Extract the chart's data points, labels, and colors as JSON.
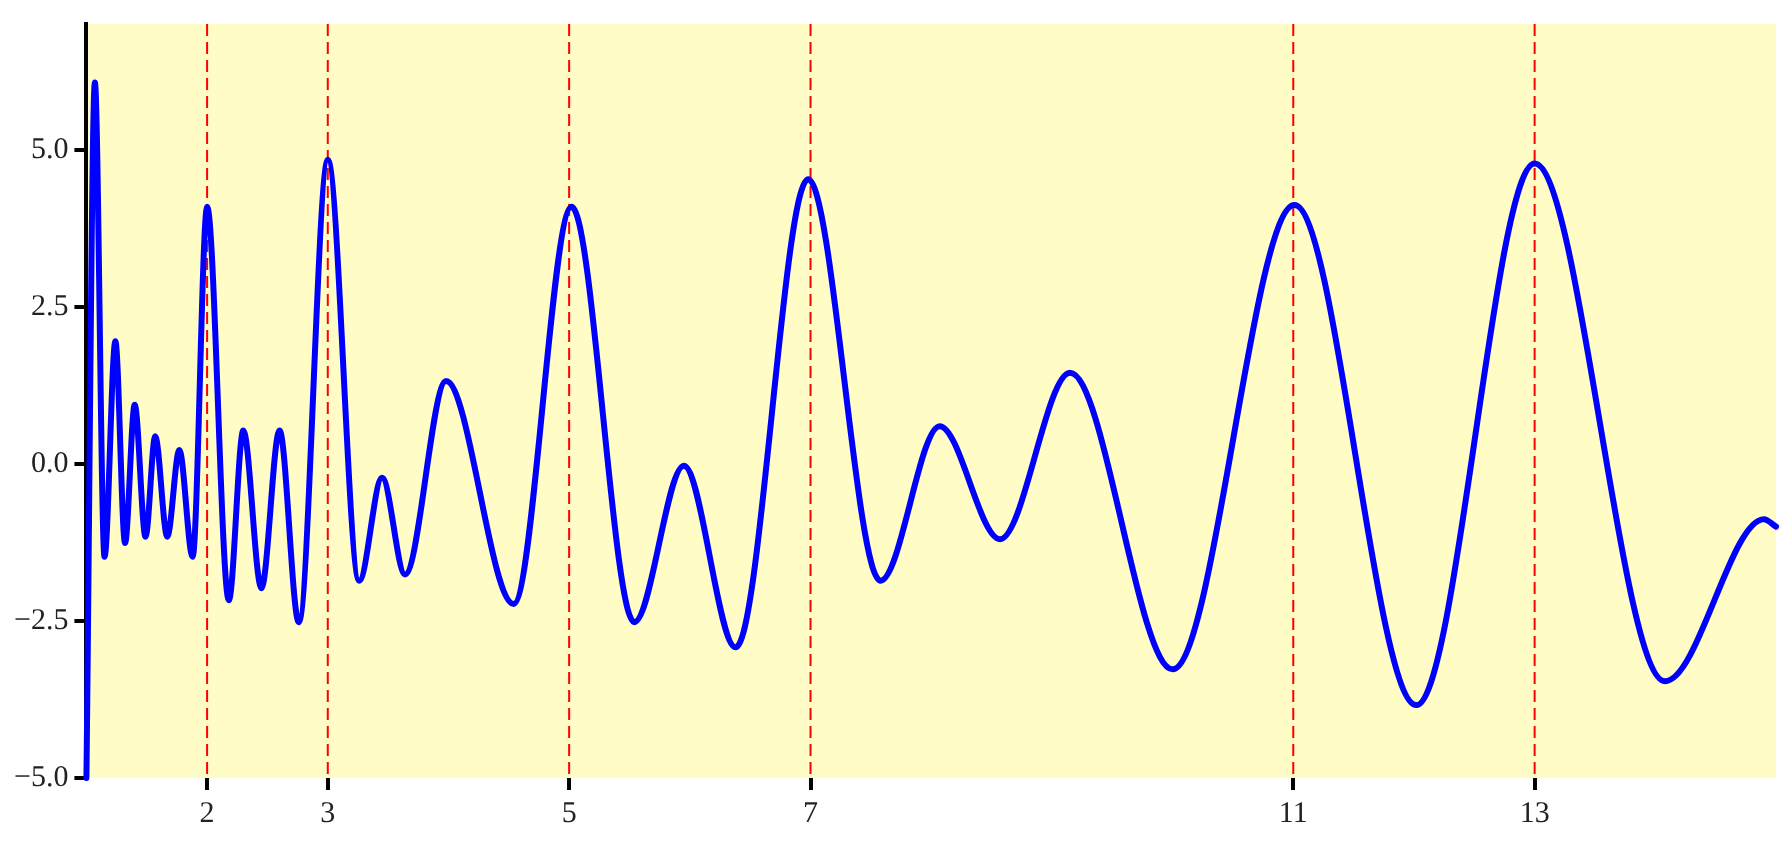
{
  "chart_data": {
    "type": "line",
    "xlim": [
      1,
      15
    ],
    "ylim": [
      -5,
      7
    ],
    "xticks": [
      2,
      3,
      5,
      7,
      11,
      13
    ],
    "yticks": [
      {
        "value": -5,
        "label": "−5.0"
      },
      {
        "value": -2.5,
        "label": "−2.5"
      },
      {
        "value": 0,
        "label": "0.0"
      },
      {
        "value": 2.5,
        "label": "2.5"
      },
      {
        "value": 5,
        "label": "5.0"
      }
    ],
    "grid": false,
    "legend": false,
    "line_style": "solid",
    "marker": "none",
    "ref_lines": [
      {
        "axis": "x",
        "value": 2,
        "color": "#ff0000",
        "line_style": "dashed"
      },
      {
        "axis": "x",
        "value": 3,
        "color": "#ff0000",
        "line_style": "dashed"
      },
      {
        "axis": "x",
        "value": 5,
        "color": "#ff0000",
        "line_style": "dashed"
      },
      {
        "axis": "x",
        "value": 7,
        "color": "#ff0000",
        "line_style": "dashed"
      },
      {
        "axis": "x",
        "value": 11,
        "color": "#ff0000",
        "line_style": "dashed"
      },
      {
        "axis": "x",
        "value": 13,
        "color": "#ff0000",
        "line_style": "dashed"
      }
    ],
    "series": [
      {
        "color": "#0000ff",
        "x": [
          1.0,
          1.07,
          1.15,
          1.24,
          1.32,
          1.4,
          1.49,
          1.57,
          1.67,
          1.77,
          1.88,
          2.0,
          2.18,
          2.3,
          2.45,
          2.6,
          2.76,
          3.0,
          3.26,
          3.45,
          3.64,
          3.98,
          4.54,
          5.02,
          5.54,
          5.95,
          6.38,
          6.98,
          7.58,
          8.07,
          8.57,
          9.15,
          10.0,
          11.01,
          12.02,
          13.0,
          14.08,
          14.9,
          15.0
        ],
        "values": [
          -5.0,
          6.07,
          -1.48,
          1.95,
          -1.26,
          0.94,
          -1.16,
          0.44,
          -1.16,
          0.22,
          -1.48,
          4.09,
          -2.17,
          0.53,
          -1.98,
          0.53,
          -2.52,
          4.84,
          -1.86,
          -0.22,
          -1.76,
          1.32,
          -2.23,
          4.09,
          -2.52,
          -0.03,
          -2.92,
          4.53,
          -1.86,
          0.6,
          -1.2,
          1.45,
          -3.27,
          4.12,
          -3.84,
          4.78,
          -3.46,
          -0.88,
          -1.0
        ]
      }
    ]
  }
}
